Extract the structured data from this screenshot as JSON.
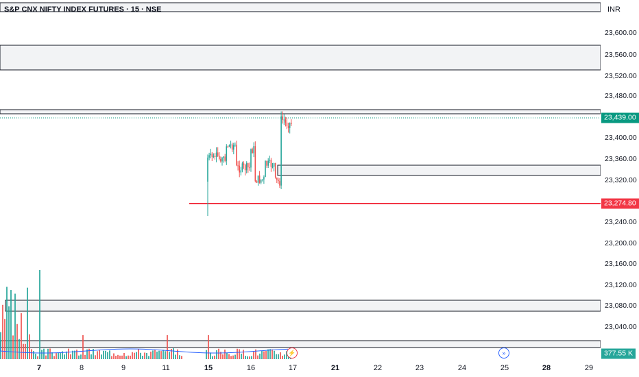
{
  "header": {
    "title": "S&P CNX NIFTY INDEX FUTURES · 15 · NSE",
    "currency": "INR"
  },
  "price_axis": {
    "ticks": [
      "23,600.00",
      "23,560.00",
      "23,520.00",
      "23,480.00",
      "23,400.00",
      "23,360.00",
      "23,320.00",
      "23,240.00",
      "23,200.00",
      "23,160.00",
      "23,120.00",
      "23,080.00",
      "23,040.00"
    ],
    "last_price": "23,439.00",
    "level_price": "23,274.80",
    "volume_label": "377.55 K"
  },
  "time_axis": {
    "ticks": [
      {
        "label": "7",
        "bold": true
      },
      {
        "label": "8",
        "bold": false
      },
      {
        "label": "9",
        "bold": false
      },
      {
        "label": "11",
        "bold": false
      },
      {
        "label": "15",
        "bold": true
      },
      {
        "label": "16",
        "bold": false
      },
      {
        "label": "17",
        "bold": false
      },
      {
        "label": "21",
        "bold": true
      },
      {
        "label": "22",
        "bold": false
      },
      {
        "label": "23",
        "bold": false
      },
      {
        "label": "24",
        "bold": false
      },
      {
        "label": "25",
        "bold": false
      },
      {
        "label": "28",
        "bold": true
      },
      {
        "label": "29",
        "bold": false
      }
    ]
  },
  "icons": {
    "event": "lightning-icon",
    "jump": "jump-to-realtime-icon"
  },
  "colors": {
    "up": "#26a69a",
    "down": "#ef5350",
    "level": "#f23645",
    "last": "#089981",
    "volume_badge": "#26a69a"
  }
}
